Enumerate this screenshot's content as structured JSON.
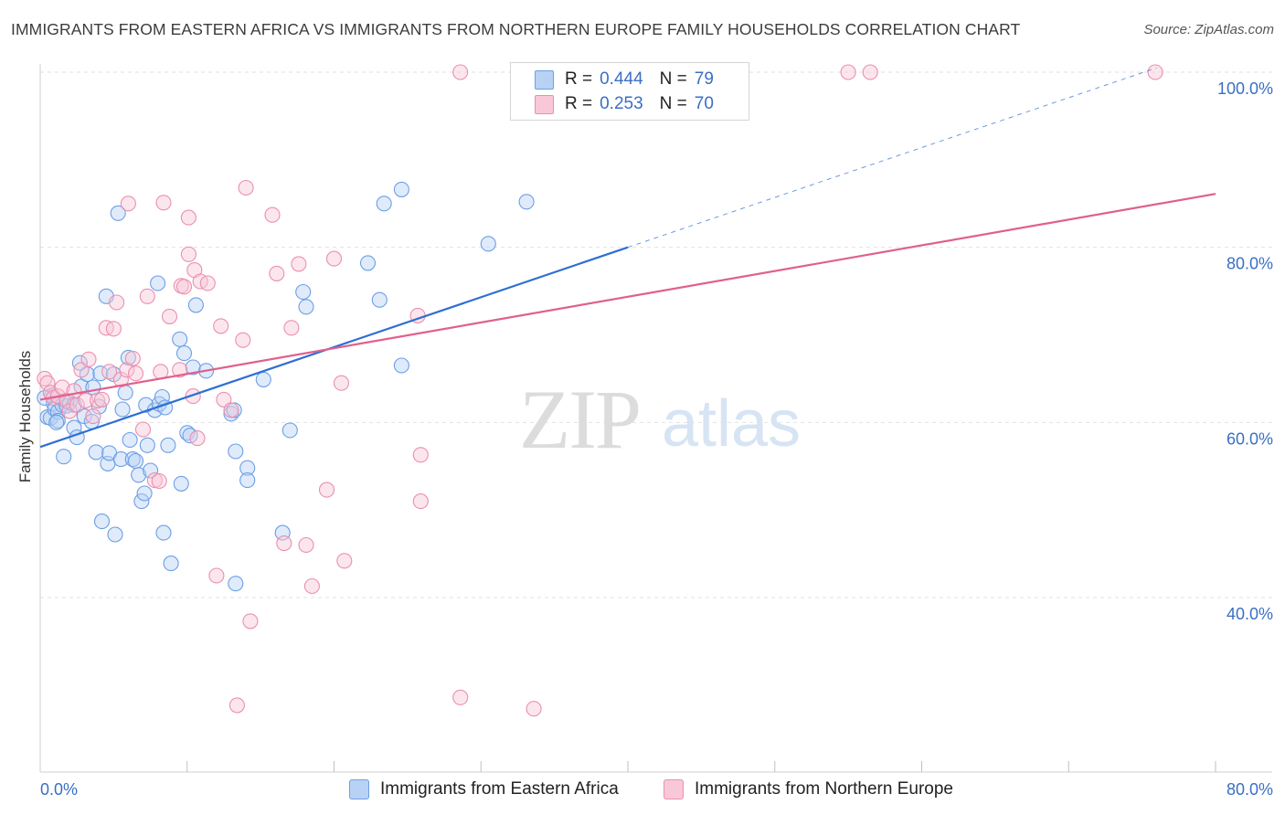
{
  "title": "IMMIGRANTS FROM EASTERN AFRICA VS IMMIGRANTS FROM NORTHERN EUROPE FAMILY HOUSEHOLDS CORRELATION CHART",
  "source": "Source: ZipAtlas.com",
  "watermark": {
    "zip": "ZIP",
    "atlas": "atlas"
  },
  "legend": {
    "r_label": "R =",
    "n_label": "N =",
    "series": [
      {
        "r": "0.444",
        "n": "79",
        "fill": "#b8d2f5",
        "stroke": "#6d9ee6"
      },
      {
        "r": "0.253",
        "n": "70",
        "fill": "#f9c8d8",
        "stroke": "#eb8fae"
      }
    ]
  },
  "chart_data": {
    "type": "scatter",
    "title": "IMMIGRANTS FROM EASTERN AFRICA VS IMMIGRANTS FROM NORTHERN EUROPE FAMILY HOUSEHOLDS CORRELATION CHART",
    "xlabel": "",
    "ylabel": "Family Households",
    "xlim": [
      0,
      80
    ],
    "ylim": [
      20,
      102
    ],
    "x_tick_labels": [
      "0.0%",
      "80.0%"
    ],
    "y_tick_labels": [
      {
        "value": 40,
        "label": "40.0%"
      },
      {
        "value": 60,
        "label": "60.0%"
      },
      {
        "value": 80,
        "label": "80.0%"
      },
      {
        "value": 100,
        "label": "100.0%"
      }
    ],
    "grid": true,
    "legend_position": "top-center",
    "series": [
      {
        "name": "Immigrants from Eastern Africa",
        "color": "#6d9ee6",
        "fill": "#b8d2f5",
        "line_color": "#2e6fd3",
        "trend": {
          "x0": 0,
          "y0": 57.2,
          "x1": 40,
          "y1": 80.0,
          "dashed_to_x": 76,
          "dashed_to_y": 100.5
        },
        "points": [
          [
            0.5,
            60.6
          ],
          [
            0.7,
            60.5
          ],
          [
            0.8,
            63.1
          ],
          [
            0.9,
            62.2
          ],
          [
            1.0,
            61.5
          ],
          [
            1.2,
            61.2
          ],
          [
            1.2,
            60.2
          ],
          [
            1.5,
            62.0
          ],
          [
            1.6,
            56.1
          ],
          [
            1.8,
            61.9
          ],
          [
            2.0,
            62.3
          ],
          [
            2.3,
            62.0
          ],
          [
            2.3,
            59.4
          ],
          [
            2.5,
            58.3
          ],
          [
            2.7,
            66.8
          ],
          [
            2.8,
            64.1
          ],
          [
            3.0,
            60.7
          ],
          [
            3.2,
            65.5
          ],
          [
            3.5,
            60.1
          ],
          [
            3.6,
            64.0
          ],
          [
            3.8,
            56.6
          ],
          [
            4.0,
            61.8
          ],
          [
            4.1,
            65.6
          ],
          [
            4.2,
            48.7
          ],
          [
            4.5,
            74.4
          ],
          [
            4.6,
            55.3
          ],
          [
            4.7,
            56.5
          ],
          [
            5.0,
            65.5
          ],
          [
            5.1,
            47.2
          ],
          [
            5.3,
            83.9
          ],
          [
            5.5,
            55.8
          ],
          [
            5.6,
            61.5
          ],
          [
            5.8,
            63.4
          ],
          [
            6.0,
            67.4
          ],
          [
            6.1,
            58.0
          ],
          [
            6.3,
            55.8
          ],
          [
            6.5,
            55.6
          ],
          [
            6.7,
            54.0
          ],
          [
            6.9,
            51.0
          ],
          [
            7.1,
            51.9
          ],
          [
            7.2,
            62.0
          ],
          [
            7.3,
            57.4
          ],
          [
            7.5,
            54.5
          ],
          [
            7.8,
            61.4
          ],
          [
            8.0,
            75.9
          ],
          [
            8.1,
            62.1
          ],
          [
            8.3,
            62.9
          ],
          [
            8.4,
            47.4
          ],
          [
            8.5,
            61.7
          ],
          [
            8.7,
            57.4
          ],
          [
            8.9,
            43.9
          ],
          [
            9.5,
            69.5
          ],
          [
            9.6,
            53.0
          ],
          [
            9.8,
            67.9
          ],
          [
            10.0,
            58.8
          ],
          [
            10.2,
            58.5
          ],
          [
            10.4,
            66.3
          ],
          [
            10.6,
            73.4
          ],
          [
            11.3,
            65.9
          ],
          [
            13.0,
            61.0
          ],
          [
            13.2,
            61.4
          ],
          [
            13.3,
            56.7
          ],
          [
            13.3,
            41.6
          ],
          [
            14.1,
            54.8
          ],
          [
            14.1,
            53.4
          ],
          [
            15.2,
            64.9
          ],
          [
            16.5,
            47.4
          ],
          [
            17.0,
            59.1
          ],
          [
            17.9,
            74.9
          ],
          [
            18.1,
            73.2
          ],
          [
            22.3,
            78.2
          ],
          [
            23.1,
            74.0
          ],
          [
            23.4,
            85.0
          ],
          [
            24.6,
            86.6
          ],
          [
            24.6,
            66.5
          ],
          [
            30.5,
            80.4
          ],
          [
            33.1,
            85.2
          ],
          [
            0.3,
            62.8
          ],
          [
            1.1,
            60.0
          ]
        ]
      },
      {
        "name": "Immigrants from Northern Europe",
        "color": "#eb8fae",
        "fill": "#f9c8d8",
        "line_color": "#e0608c",
        "trend": {
          "x0": 0,
          "y0": 62.6,
          "x1": 80,
          "y1": 86.1
        },
        "points": [
          [
            0.3,
            65.0
          ],
          [
            0.5,
            64.5
          ],
          [
            0.7,
            63.4
          ],
          [
            0.9,
            62.8
          ],
          [
            1.2,
            63.0
          ],
          [
            1.5,
            64.0
          ],
          [
            1.8,
            62.5
          ],
          [
            2.0,
            61.3
          ],
          [
            2.3,
            63.6
          ],
          [
            2.5,
            62.0
          ],
          [
            2.8,
            66.0
          ],
          [
            3.1,
            62.5
          ],
          [
            3.3,
            67.2
          ],
          [
            3.6,
            60.7
          ],
          [
            3.9,
            62.5
          ],
          [
            4.2,
            62.6
          ],
          [
            4.5,
            70.8
          ],
          [
            4.7,
            65.8
          ],
          [
            5.0,
            70.7
          ],
          [
            5.2,
            73.7
          ],
          [
            5.5,
            64.9
          ],
          [
            5.9,
            66.0
          ],
          [
            6.0,
            85.0
          ],
          [
            6.3,
            67.3
          ],
          [
            6.5,
            65.6
          ],
          [
            7.0,
            59.2
          ],
          [
            7.3,
            74.4
          ],
          [
            7.8,
            53.4
          ],
          [
            8.1,
            53.3
          ],
          [
            8.2,
            65.8
          ],
          [
            8.4,
            85.1
          ],
          [
            8.8,
            72.1
          ],
          [
            9.5,
            66.0
          ],
          [
            9.6,
            75.6
          ],
          [
            9.8,
            75.5
          ],
          [
            10.1,
            83.4
          ],
          [
            10.1,
            79.2
          ],
          [
            10.4,
            63.0
          ],
          [
            10.5,
            77.4
          ],
          [
            10.7,
            58.2
          ],
          [
            10.9,
            76.1
          ],
          [
            11.4,
            75.9
          ],
          [
            12.0,
            42.5
          ],
          [
            12.3,
            71.0
          ],
          [
            12.5,
            62.6
          ],
          [
            13.0,
            61.4
          ],
          [
            13.4,
            27.7
          ],
          [
            13.8,
            69.4
          ],
          [
            14.0,
            86.8
          ],
          [
            14.3,
            37.3
          ],
          [
            15.8,
            83.7
          ],
          [
            16.1,
            77.0
          ],
          [
            16.6,
            46.2
          ],
          [
            17.1,
            70.8
          ],
          [
            17.6,
            78.1
          ],
          [
            18.1,
            46.0
          ],
          [
            18.5,
            41.3
          ],
          [
            19.5,
            52.3
          ],
          [
            20.0,
            78.7
          ],
          [
            20.5,
            64.5
          ],
          [
            20.7,
            44.2
          ],
          [
            25.7,
            72.2
          ],
          [
            25.9,
            56.3
          ],
          [
            25.9,
            51.0
          ],
          [
            28.6,
            28.6
          ],
          [
            28.6,
            100.0
          ],
          [
            33.6,
            27.3
          ],
          [
            55.0,
            100.0
          ],
          [
            56.5,
            100.0
          ],
          [
            75.9,
            100.0
          ]
        ]
      }
    ]
  }
}
